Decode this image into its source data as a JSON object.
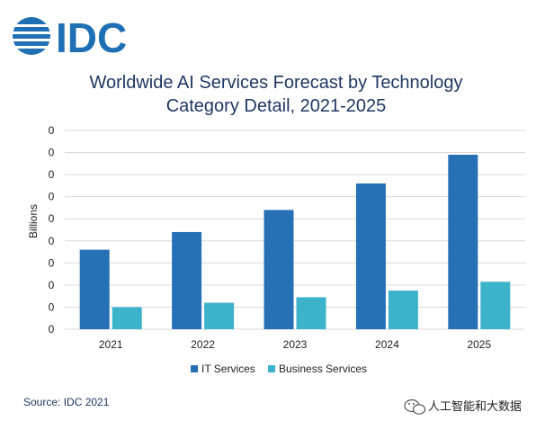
{
  "logo": {
    "text": "IDC"
  },
  "source": "Source: IDC 2021",
  "watermark": {
    "text": "人工智能和大数据",
    "icon": "wechat-icon"
  },
  "colors": {
    "it": "#2670b6",
    "business": "#3db3cb",
    "grid": "#d9d9d9",
    "title": "#1f3763",
    "logo": "#1f6fb5"
  },
  "chart_data": {
    "type": "bar",
    "title_lines": [
      "Worldwide AI Services Forecast by Technology",
      "Category Detail, 2021-2025"
    ],
    "xlabel": "",
    "ylabel": "Billions",
    "categories": [
      "2021",
      "2022",
      "2023",
      "2024",
      "2025"
    ],
    "ytick_labels": [
      "0",
      "0",
      "0",
      "0",
      "0",
      "0",
      "0",
      "0",
      "0",
      "0"
    ],
    "ylim": [
      0,
      9
    ],
    "series": [
      {
        "name": "IT Services",
        "values": [
          3.6,
          4.4,
          5.4,
          6.6,
          7.9
        ]
      },
      {
        "name": "Business Services",
        "values": [
          1.0,
          1.2,
          1.45,
          1.75,
          2.15
        ]
      }
    ],
    "grid": true,
    "legend_position": "bottom"
  }
}
